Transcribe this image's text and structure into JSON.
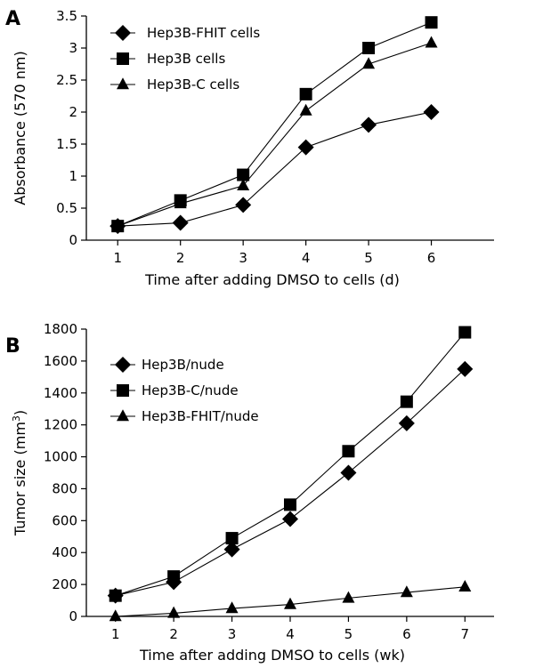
{
  "chart_data": [
    {
      "panel": "A",
      "type": "line",
      "x": [
        1,
        2,
        3,
        4,
        5,
        6
      ],
      "xlabel": "Time after adding DMSO to cells (d)",
      "ylabel": "Absorbance (570 nm)",
      "xlim": [
        0.5,
        7.0
      ],
      "ylim": [
        0,
        3.5
      ],
      "x_ticks": [
        1,
        2,
        3,
        4,
        5,
        6
      ],
      "x_tick_labels": [
        "1",
        "2",
        "3",
        "4",
        "5",
        "6"
      ],
      "y_ticks": [
        0,
        0.5,
        1,
        1.5,
        2,
        2.5,
        3,
        3.5
      ],
      "y_tick_labels": [
        "0",
        "0.5",
        "1",
        "1.5",
        "2",
        "2.5",
        "3",
        "3.5"
      ],
      "legend_position": "top-left",
      "grid": false,
      "series": [
        {
          "name": "Hep3B-FHIT cells",
          "marker": "diamond",
          "values": [
            0.22,
            0.27,
            0.55,
            1.45,
            1.8,
            2.0
          ]
        },
        {
          "name": "Hep3B cells",
          "marker": "square",
          "values": [
            0.22,
            0.62,
            1.02,
            2.28,
            3.0,
            3.4
          ]
        },
        {
          "name": "Hep3B-C cells",
          "marker": "triangle",
          "values": [
            0.22,
            0.57,
            0.85,
            2.02,
            2.75,
            3.08
          ]
        }
      ]
    },
    {
      "panel": "B",
      "type": "line",
      "x": [
        1,
        2,
        3,
        4,
        5,
        6,
        7
      ],
      "xlabel": "Time after adding DMSO to cells (wk)",
      "ylabel_main": "Tumor size (mm",
      "ylabel_sup": "3",
      "ylabel_end": ")",
      "xlim": [
        0.5,
        7.5
      ],
      "ylim": [
        0,
        1800
      ],
      "x_ticks": [
        1,
        2,
        3,
        4,
        5,
        6,
        7
      ],
      "x_tick_labels": [
        "1",
        "2",
        "3",
        "4",
        "5",
        "6",
        "7"
      ],
      "y_ticks": [
        0,
        200,
        400,
        600,
        800,
        1000,
        1200,
        1400,
        1600,
        1800
      ],
      "y_tick_labels": [
        "0",
        "200",
        "400",
        "600",
        "800",
        "1000",
        "1200",
        "1400",
        "1600",
        "1800"
      ],
      "legend_position": "top-left",
      "grid": false,
      "series": [
        {
          "name": "Hep3B/nude",
          "marker": "diamond",
          "values": [
            130,
            215,
            420,
            610,
            900,
            1210,
            1550
          ]
        },
        {
          "name": "Hep3B-C/nude",
          "marker": "square",
          "values": [
            130,
            250,
            490,
            700,
            1035,
            1345,
            1780
          ]
        },
        {
          "name": "Hep3B-FHIT/nude",
          "marker": "triangle",
          "values": [
            0,
            20,
            50,
            75,
            115,
            150,
            185
          ]
        }
      ]
    }
  ]
}
